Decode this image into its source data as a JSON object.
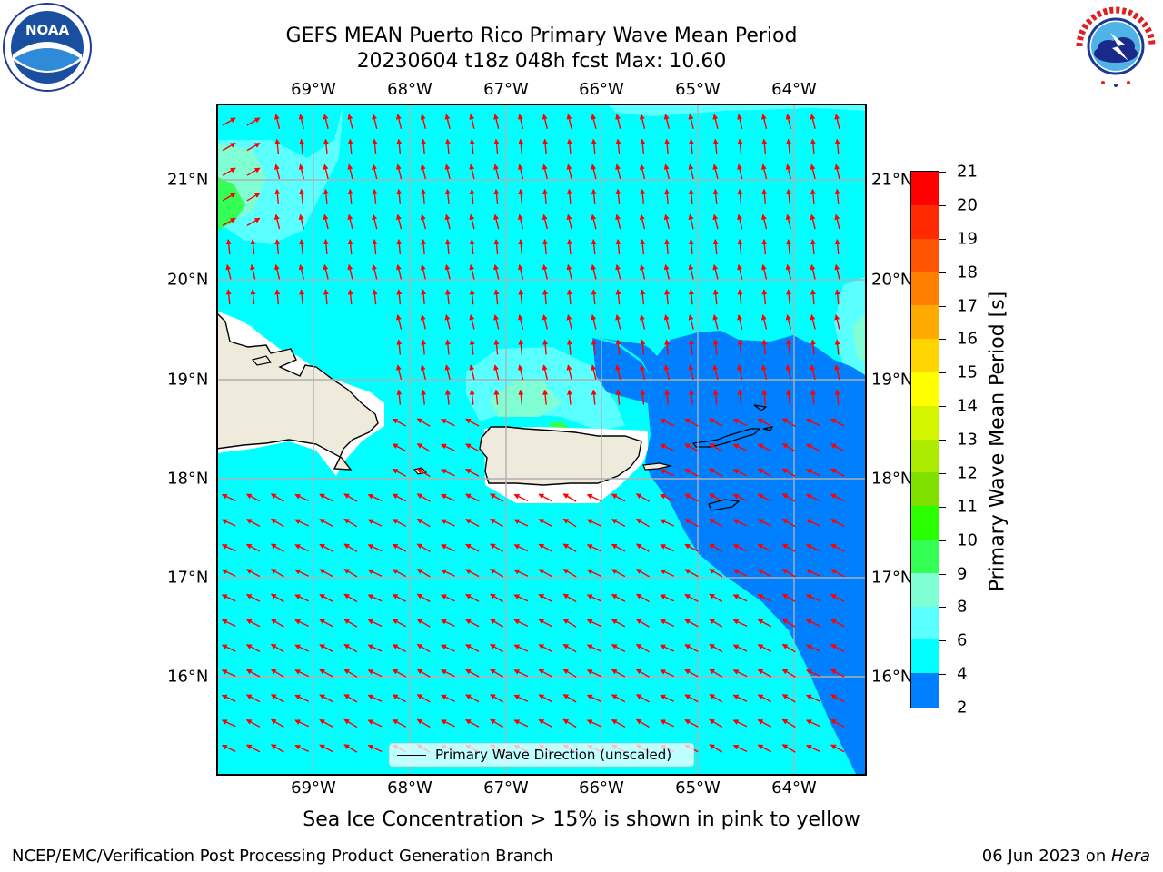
{
  "header": {
    "title_line1": "GEFS MEAN Puerto Rico Primary Wave Mean Period",
    "title_line2": "20230604 t18z 048h fcst   Max: 10.60"
  },
  "logos": {
    "left": {
      "name": "noaa-logo",
      "text": "NOAA",
      "ring_text": "NATIONAL OCEANIC AND ATMOSPHERIC ADMINISTRATION · U.S. DEPARTMENT OF COMMERCE"
    },
    "right": {
      "name": "national-weather-service-logo",
      "ring_text": "NATIONAL WEATHER SERVICE"
    }
  },
  "map": {
    "lon_ticks": [
      "69°W",
      "68°W",
      "67°W",
      "66°W",
      "65°W",
      "64°W"
    ],
    "lat_ticks": [
      "21°N",
      "20°N",
      "19°N",
      "18°N",
      "17°N",
      "16°N"
    ],
    "arrow_color": "#ff0000",
    "land_color": "#efebdc",
    "legend_label": "Primary Wave Direction (unscaled)"
  },
  "colorbar": {
    "label": "Primary Wave Mean Period [s]",
    "ticks": [
      "21",
      "20",
      "19",
      "18",
      "17",
      "16",
      "15",
      "14",
      "13",
      "12",
      "11",
      "10",
      "9",
      "8",
      "6",
      "4",
      "2"
    ],
    "colors": [
      "#ff0000",
      "#ff2a00",
      "#ff5500",
      "#ff8000",
      "#ffaa00",
      "#ffd400",
      "#ffff00",
      "#d4f500",
      "#aaeb00",
      "#80e000",
      "#2aff00",
      "#33ff55",
      "#80ffd4",
      "#5affff",
      "#00ffff",
      "#0080ff",
      "#0000ff"
    ]
  },
  "note": "Sea Ice Concentration > 15% is shown in pink to yellow",
  "footer": {
    "left": "NCEP/EMC/Verification Post Processing Product Generation Branch",
    "right_date": "06 Jun 2023 on ",
    "right_machine": "Hera"
  }
}
